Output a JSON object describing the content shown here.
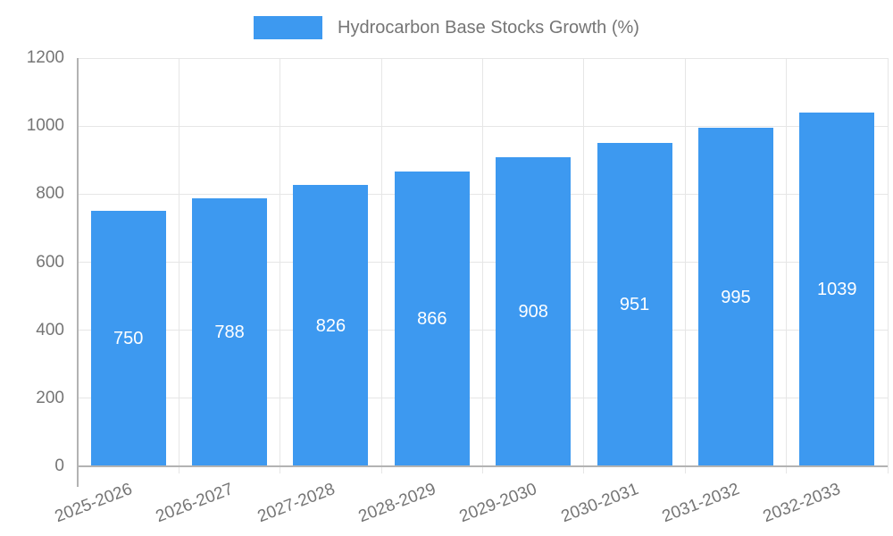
{
  "chart_data": {
    "type": "bar",
    "title": "Hydrocarbon Base Stocks Growth (%)",
    "xlabel": "",
    "ylabel": "",
    "categories": [
      "2025-2026",
      "2026-2027",
      "2027-2028",
      "2028-2029",
      "2029-2030",
      "2030-2031",
      "2031-2032",
      "2032-2033"
    ],
    "values": [
      750,
      788,
      826,
      866,
      908,
      951,
      995,
      1039
    ],
    "ylim": [
      0,
      1200
    ],
    "y_ticks": [
      0,
      200,
      400,
      600,
      800,
      1000,
      1200
    ],
    "grid": true,
    "legend_position": "top",
    "bar_labels_shown": true,
    "colors": {
      "bar": "#3d99f0",
      "value_label": "#ffffff",
      "axis_text": "#757575",
      "grid_line": "#e6e6e6",
      "axis_line": "#b3b3b3",
      "background": "#ffffff"
    }
  }
}
